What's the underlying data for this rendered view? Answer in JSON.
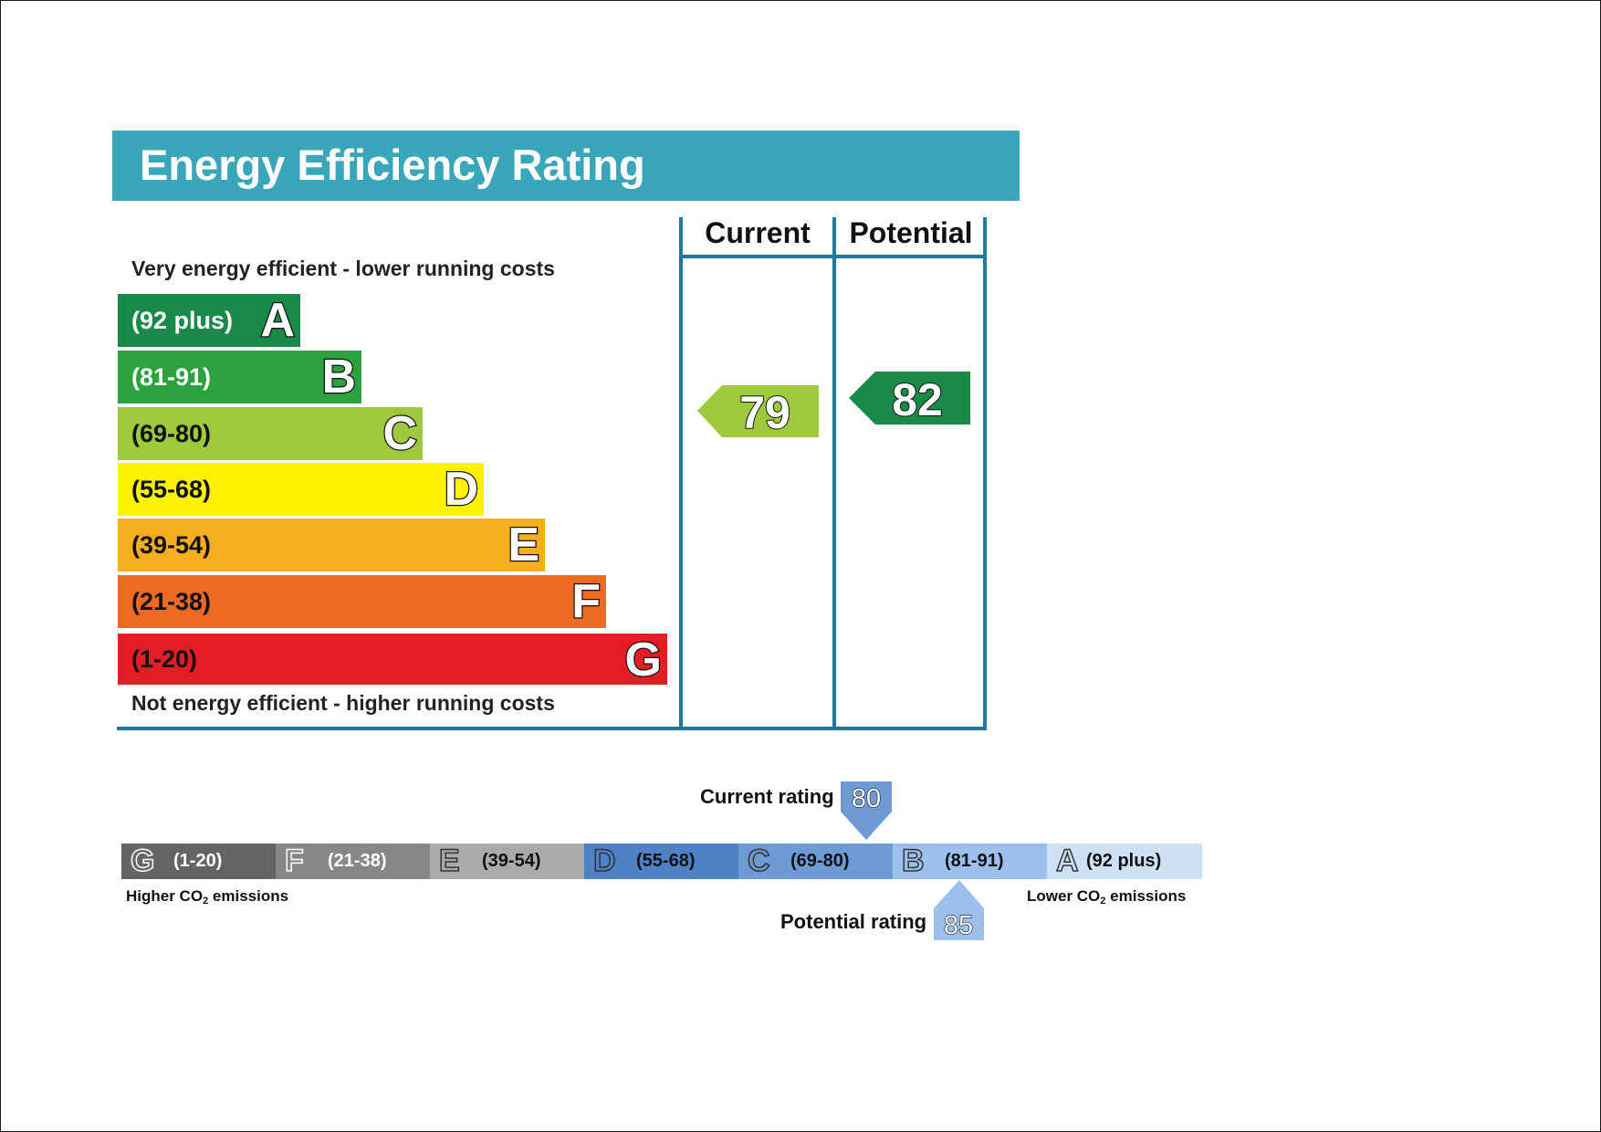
{
  "chart_data": [
    {
      "type": "bar",
      "title": "Energy Efficiency Rating",
      "top_note": "Very energy efficient - lower running costs",
      "bottom_note": "Not energy efficient - higher running costs",
      "bands": [
        {
          "letter": "A",
          "range": "(92 plus)",
          "color": "#1a8a48",
          "text_color": "#ffffff"
        },
        {
          "letter": "B",
          "range": "(81-91)",
          "color": "#2ba23e",
          "text_color": "#ffffff"
        },
        {
          "letter": "C",
          "range": "(69-80)",
          "color": "#9dc93b",
          "text_color": "#111111"
        },
        {
          "letter": "D",
          "range": "(55-68)",
          "color": "#fff200",
          "text_color": "#111111"
        },
        {
          "letter": "E",
          "range": "(39-54)",
          "color": "#f6ae21",
          "text_color": "#111111"
        },
        {
          "letter": "F",
          "range": "(21-38)",
          "color": "#ec6b24",
          "text_color": "#111111"
        },
        {
          "letter": "G",
          "range": "(1-20)",
          "color": "#e31d23",
          "text_color": "#111111"
        }
      ],
      "columns": {
        "current": "Current",
        "potential": "Potential"
      },
      "current": {
        "value": 79,
        "band": "C",
        "color": "#9dc93b"
      },
      "potential": {
        "value": 82,
        "band": "B",
        "color": "#2ba23e"
      }
    },
    {
      "type": "bar",
      "segments": [
        {
          "letter": "G",
          "range": "(1-20)",
          "color": "#646464",
          "text_color": "#ffffff"
        },
        {
          "letter": "F",
          "range": "(21-38)",
          "color": "#878787",
          "text_color": "#ffffff"
        },
        {
          "letter": "E",
          "range": "(39-54)",
          "color": "#aaaaaa",
          "text_color": "#111111"
        },
        {
          "letter": "D",
          "range": "(55-68)",
          "color": "#4f81c5",
          "text_color": "#111111"
        },
        {
          "letter": "C",
          "range": "(69-80)",
          "color": "#6e9bd5",
          "text_color": "#111111"
        },
        {
          "letter": "B",
          "range": "(81-91)",
          "color": "#9cc0eb",
          "text_color": "#111111"
        },
        {
          "letter": "A",
          "range": "(92 plus)",
          "color": "#cde0f6",
          "text_color": "#111111"
        }
      ],
      "left_note": {
        "text": "Higher CO",
        "sub": "2",
        "tail": " emissions"
      },
      "right_note": {
        "text": "Lower CO",
        "sub": "2",
        "tail": " emissions"
      },
      "current_rating": {
        "label": "Current rating",
        "value": 80,
        "color": "#6e9bd5"
      },
      "potential_rating": {
        "label": "Potential rating",
        "value": 85,
        "color": "#9cc0eb"
      }
    }
  ]
}
